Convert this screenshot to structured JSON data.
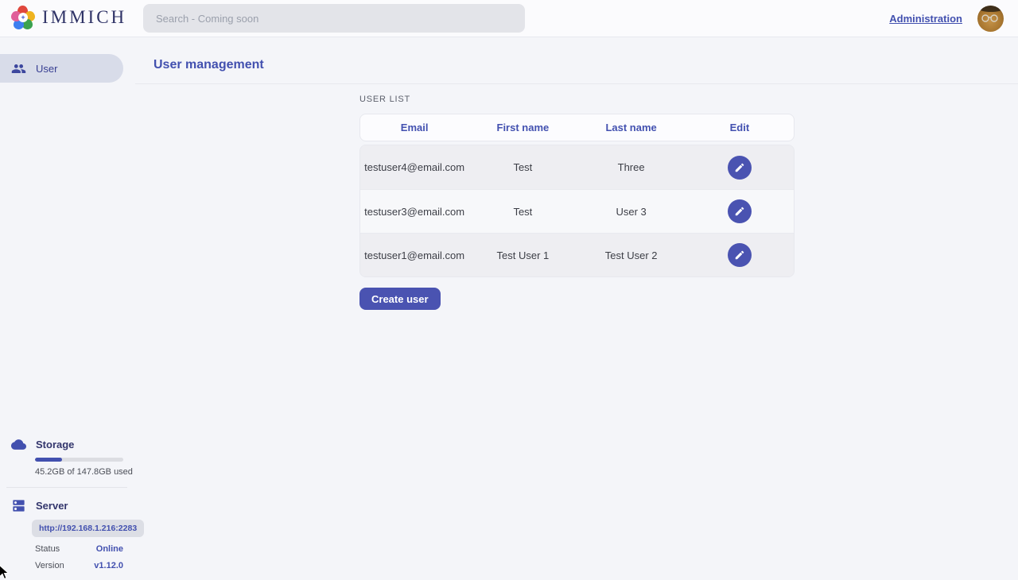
{
  "app": {
    "name": "IMMICH"
  },
  "topbar": {
    "search_placeholder": "Search - Coming soon",
    "admin_link": "Administration"
  },
  "sidebar": {
    "items": [
      {
        "label": "User",
        "icon": "users-icon",
        "active": true
      }
    ],
    "storage": {
      "title": "Storage",
      "icon": "cloud-icon",
      "usage_text": "45.2GB of 147.8GB used",
      "used_gb": 45.2,
      "total_gb": 147.8,
      "percent_used": 30.6
    },
    "server": {
      "title": "Server",
      "icon": "server-icon",
      "url": "http://192.168.1.216:2283",
      "status_label": "Status",
      "status_value": "Online",
      "version_label": "Version",
      "version_value": "v1.12.0"
    }
  },
  "main": {
    "title": "User management",
    "section_label": "USER LIST",
    "table": {
      "columns": [
        "Email",
        "First name",
        "Last name",
        "Edit"
      ],
      "rows": [
        {
          "email": "testuser4@email.com",
          "first_name": "Test",
          "last_name": "Three"
        },
        {
          "email": "testuser3@email.com",
          "first_name": "Test",
          "last_name": "User 3"
        },
        {
          "email": "testuser1@email.com",
          "first_name": "Test User 1",
          "last_name": "Test User 2"
        }
      ],
      "row_action_icon": "pencil-icon"
    },
    "create_button": "Create user"
  },
  "colors": {
    "primary": "#4250af",
    "primary-btn": "#4a53b1",
    "navy": "#2e3266",
    "page-bg": "#f4f5f9"
  }
}
